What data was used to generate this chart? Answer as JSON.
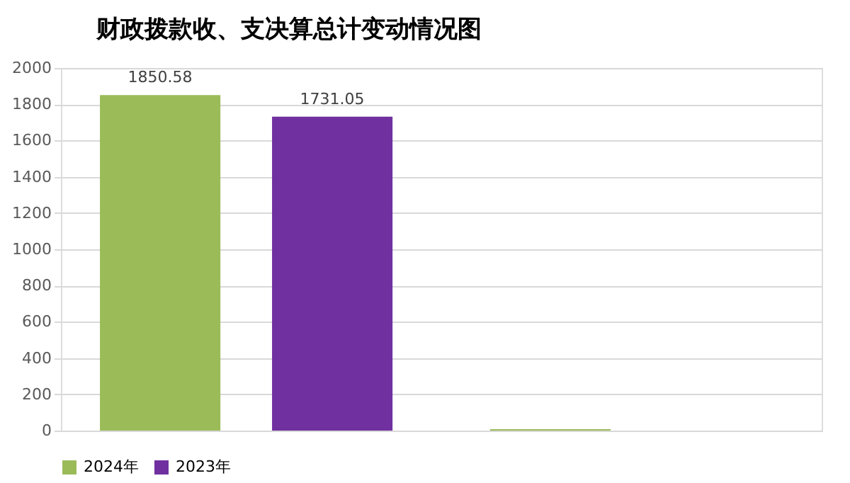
{
  "chart_data": {
    "type": "bar",
    "title": "财政拨款收、支决算总计变动情况图",
    "categories": [
      null,
      null
    ],
    "series": [
      {
        "name": "2024年",
        "color": "#9bbb59",
        "values": [
          1850.58,
          8
        ],
        "value_labels": [
          "1850.58",
          null
        ]
      },
      {
        "name": "2023年",
        "color": "#7030a0",
        "values": [
          1731.05,
          null
        ],
        "value_labels": [
          "1731.05",
          null
        ]
      }
    ],
    "ylim": [
      0,
      2000
    ],
    "yticks": [
      0,
      200,
      400,
      600,
      800,
      1000,
      1200,
      1400,
      1600,
      1800,
      2000
    ],
    "grid": "y",
    "legend": "bottom"
  }
}
